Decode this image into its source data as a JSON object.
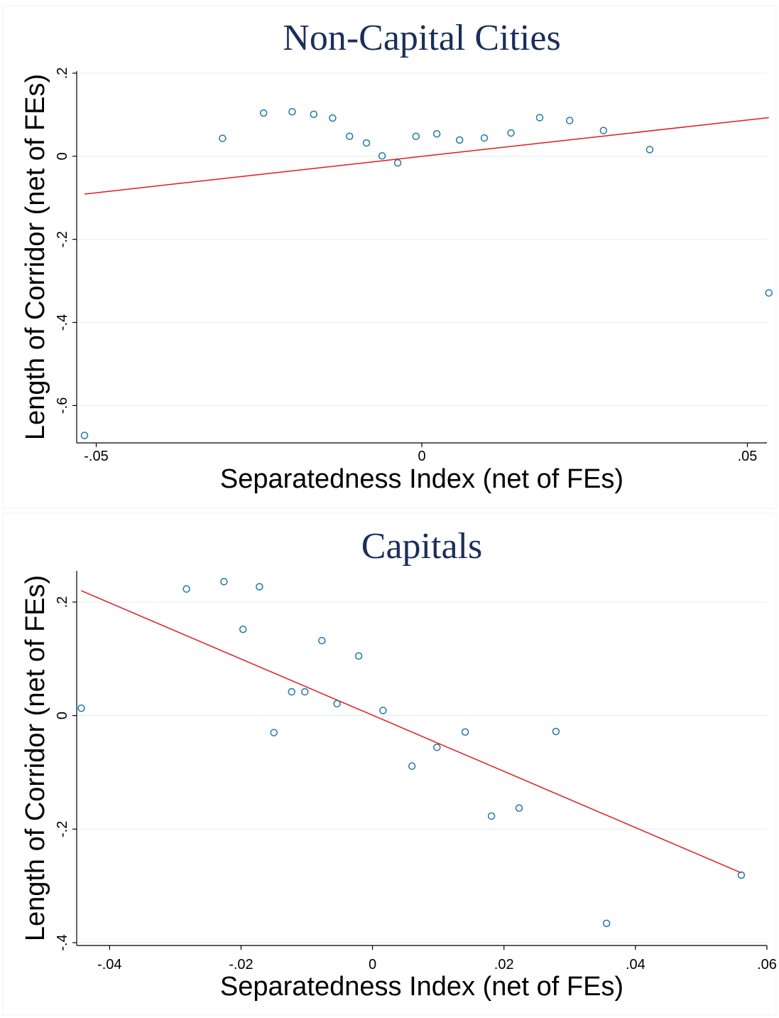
{
  "colors": {
    "point": "#1f77a8",
    "fit_line": "#e31a1c",
    "grid": "#e6eef2",
    "title": "#1a2f5a",
    "axis": "#000000"
  },
  "chart_data": [
    {
      "type": "scatter",
      "title": "Non-Capital Cities",
      "xlabel": "Separatedness Index (net of FEs)",
      "ylabel": "Length of Corridor (net of FEs)",
      "xlim": [
        -0.053,
        0.053
      ],
      "ylim": [
        -0.69,
        0.205
      ],
      "xticks": [
        -0.05,
        0,
        0.05
      ],
      "xtick_labels": [
        "-.05",
        "0",
        ".05"
      ],
      "yticks": [
        0.2,
        0,
        -0.2,
        -0.4,
        -0.6
      ],
      "ytick_labels": [
        ".2",
        "0",
        "-.2",
        "-.4",
        "-.6"
      ],
      "grid": true,
      "points": [
        {
          "x": -0.0518,
          "y": -0.672
        },
        {
          "x": -0.0306,
          "y": 0.043
        },
        {
          "x": -0.0243,
          "y": 0.104
        },
        {
          "x": -0.0199,
          "y": 0.107
        },
        {
          "x": -0.0166,
          "y": 0.101
        },
        {
          "x": -0.0137,
          "y": 0.092
        },
        {
          "x": -0.0111,
          "y": 0.048
        },
        {
          "x": -0.0085,
          "y": 0.032
        },
        {
          "x": -0.0061,
          "y": 0.001
        },
        {
          "x": -0.0037,
          "y": -0.016
        },
        {
          "x": -0.0009,
          "y": 0.048
        },
        {
          "x": 0.0023,
          "y": 0.054
        },
        {
          "x": 0.0058,
          "y": 0.039
        },
        {
          "x": 0.0096,
          "y": 0.044
        },
        {
          "x": 0.0137,
          "y": 0.056
        },
        {
          "x": 0.0181,
          "y": 0.093
        },
        {
          "x": 0.0227,
          "y": 0.086
        },
        {
          "x": 0.0279,
          "y": 0.062
        },
        {
          "x": 0.035,
          "y": 0.016
        },
        {
          "x": 0.0533,
          "y": -0.329
        }
      ],
      "fit_line": {
        "x": [
          -0.0518,
          0.0533
        ],
        "y": [
          -0.091,
          0.093
        ]
      }
    },
    {
      "type": "scatter",
      "title": "Capitals",
      "xlabel": "Separatedness Index (net of FEs)",
      "ylabel": "Length of Corridor (net of FEs)",
      "xlim": [
        -0.045,
        0.06
      ],
      "ylim": [
        -0.405,
        0.255
      ],
      "xticks": [
        -0.04,
        -0.02,
        0,
        0.02,
        0.04,
        0.06
      ],
      "xtick_labels": [
        "-.04",
        "-.02",
        "0",
        ".02",
        ".04",
        ".06"
      ],
      "yticks": [
        0.2,
        0,
        -0.2,
        -0.4
      ],
      "ytick_labels": [
        ".2",
        "0",
        "-.2",
        "-.4"
      ],
      "grid": true,
      "points": [
        {
          "x": -0.0443,
          "y": 0.013
        },
        {
          "x": -0.0283,
          "y": 0.223
        },
        {
          "x": -0.0226,
          "y": 0.236
        },
        {
          "x": -0.0197,
          "y": 0.152
        },
        {
          "x": -0.0172,
          "y": 0.227
        },
        {
          "x": -0.015,
          "y": -0.03
        },
        {
          "x": -0.0123,
          "y": 0.042
        },
        {
          "x": -0.0103,
          "y": 0.042
        },
        {
          "x": -0.0077,
          "y": 0.132
        },
        {
          "x": -0.0054,
          "y": 0.021
        },
        {
          "x": -0.0021,
          "y": 0.105
        },
        {
          "x": 0.0016,
          "y": 0.009
        },
        {
          "x": 0.006,
          "y": -0.089
        },
        {
          "x": 0.0098,
          "y": -0.056
        },
        {
          "x": 0.0141,
          "y": -0.029
        },
        {
          "x": 0.0181,
          "y": -0.177
        },
        {
          "x": 0.0223,
          "y": -0.163
        },
        {
          "x": 0.0279,
          "y": -0.028
        },
        {
          "x": 0.0356,
          "y": -0.366
        },
        {
          "x": 0.0561,
          "y": -0.281
        }
      ],
      "fit_line": {
        "x": [
          -0.0443,
          0.0561
        ],
        "y": [
          0.22,
          -0.277
        ]
      }
    }
  ]
}
